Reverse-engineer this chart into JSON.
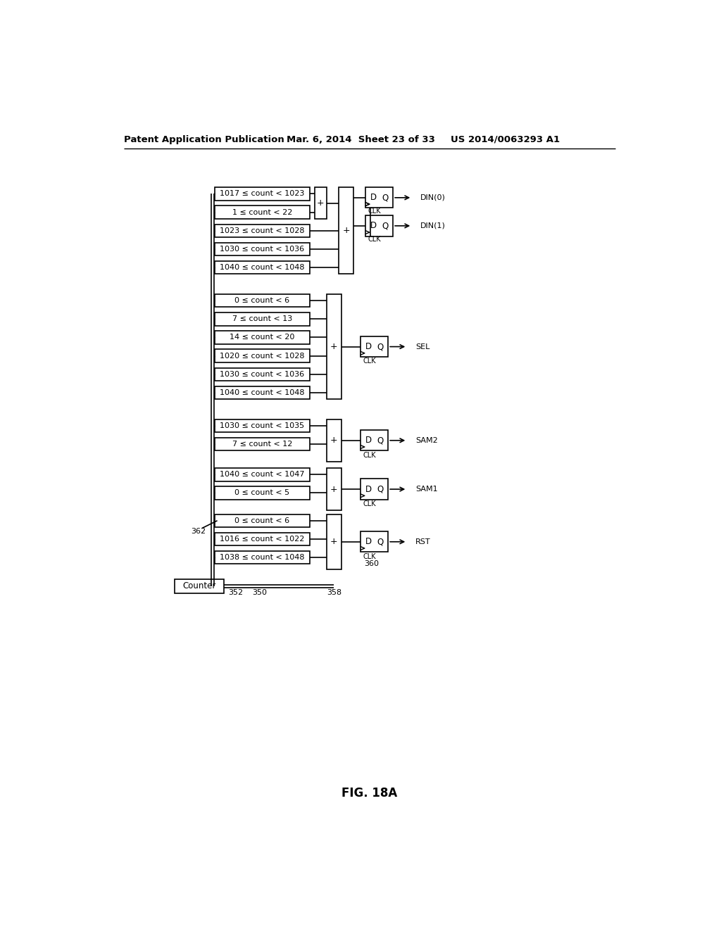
{
  "bg_color": "#ffffff",
  "header_left": "Patent Application Publication",
  "header_mid": "Mar. 6, 2014  Sheet 23 of 33",
  "header_right": "US 2014/0063293 A1",
  "figure_label": "FIG. 18A",
  "g0_labels": [
    "1017 ≤ count < 1023",
    "1 ≤ count < 22",
    "1023 ≤ count < 1028",
    "1030 ≤ count < 1036",
    "1040 ≤ count < 1048"
  ],
  "g1_labels": [
    "0 ≤ count < 6",
    "7 ≤ count < 13",
    "14 ≤ count < 20",
    "1020 ≤ count < 1028",
    "1030 ≤ count < 1036",
    "1040 ≤ count < 1048"
  ],
  "g2_labels": [
    "1030 ≤ count < 1035",
    "7 ≤ count < 12"
  ],
  "g3_labels": [
    "1040 ≤ count < 1047",
    "0 ≤ count < 5"
  ],
  "g4_labels": [
    "0 ≤ count < 6",
    "1016 ≤ count < 1022",
    "1038 ≤ count < 1048"
  ],
  "out0": "DIN(0)",
  "out1": "DIN(1)",
  "out2": "SEL",
  "out3": "SAM2",
  "out4": "SAM1",
  "out5": "RST",
  "counter_label": "Counter",
  "ref352": "352",
  "ref350": "350",
  "ref358": "358",
  "ref360": "360",
  "ref362": "362"
}
